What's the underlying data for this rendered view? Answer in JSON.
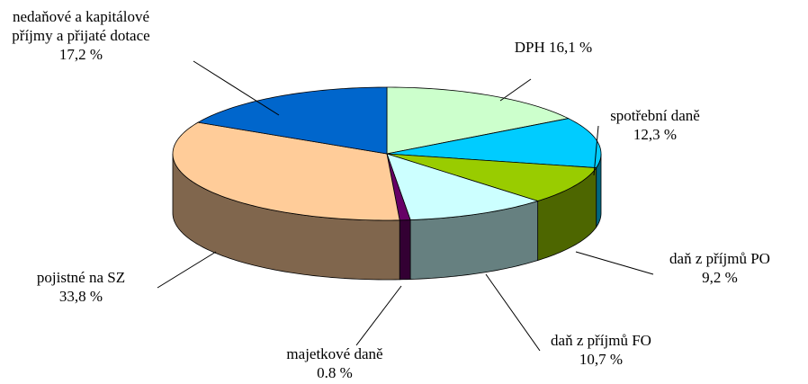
{
  "chart_data": {
    "type": "pie3d",
    "categories": [
      "DPH",
      "spotřební daně",
      "daň z příjmů PO",
      "daň z příjmů FO",
      "majetkové daně",
      "pojistné na SZ",
      "nedaňové a kapitálové příjmy a přijaté dotace"
    ],
    "values": [
      16.1,
      12.3,
      9.2,
      10.7,
      0.8,
      33.8,
      17.2
    ],
    "value_labels": [
      "16,1 %",
      "12,3 %",
      "9,2 %",
      "10,7 %",
      "0.8 %",
      "33,8 %",
      "17,2 %"
    ],
    "colors": [
      "#ccffcc",
      "#00ccff",
      "#99cc00",
      "#ccffff",
      "#660066",
      "#ffcc99",
      "#0066cc"
    ]
  }
}
